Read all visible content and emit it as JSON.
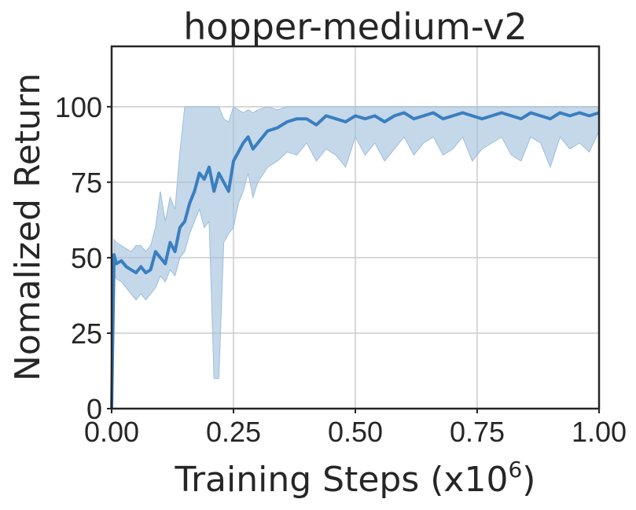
{
  "chart_data": {
    "type": "line",
    "title": "hopper-medium-v2",
    "xlabel": "Training Steps (x10",
    "xlabel_exponent": "6",
    "xlabel_close": ")",
    "ylabel": "Nomalized Return",
    "xlim": [
      0.0,
      1.0
    ],
    "ylim": [
      0,
      120
    ],
    "xticks": [
      "0.00",
      "0.25",
      "0.50",
      "0.75",
      "1.00"
    ],
    "xtick_values": [
      0.0,
      0.25,
      0.5,
      0.75,
      1.0
    ],
    "yticks": [
      "0",
      "25",
      "50",
      "75",
      "100"
    ],
    "ytick_values": [
      0,
      25,
      50,
      75,
      100
    ],
    "grid": true,
    "colors": {
      "line": "#3a7ebf",
      "band": "#9dbedc"
    },
    "series": [
      {
        "x": [
          0.0,
          0.005,
          0.01,
          0.02,
          0.03,
          0.04,
          0.05,
          0.06,
          0.07,
          0.08,
          0.09,
          0.1,
          0.11,
          0.12,
          0.13,
          0.14,
          0.15,
          0.16,
          0.17,
          0.18,
          0.19,
          0.2,
          0.21,
          0.22,
          0.23,
          0.24,
          0.25,
          0.26,
          0.27,
          0.28,
          0.29,
          0.3,
          0.32,
          0.34,
          0.36,
          0.38,
          0.4,
          0.42,
          0.44,
          0.46,
          0.48,
          0.5,
          0.52,
          0.54,
          0.56,
          0.58,
          0.6,
          0.62,
          0.64,
          0.66,
          0.68,
          0.7,
          0.72,
          0.74,
          0.76,
          0.78,
          0.8,
          0.82,
          0.84,
          0.86,
          0.88,
          0.9,
          0.92,
          0.94,
          0.96,
          0.98,
          1.0
        ],
        "y": [
          0,
          51,
          48,
          49,
          47,
          46,
          45,
          47,
          45,
          46,
          52,
          50,
          48,
          55,
          52,
          60,
          62,
          68,
          72,
          78,
          76,
          80,
          72,
          78,
          75,
          72,
          82,
          85,
          88,
          90,
          86,
          88,
          92,
          93,
          95,
          96,
          96,
          94,
          97,
          96,
          95,
          97,
          96,
          97,
          95,
          97,
          98,
          96,
          97,
          98,
          96,
          97,
          98,
          97,
          96,
          97,
          98,
          97,
          96,
          98,
          97,
          96,
          98,
          97,
          98,
          97,
          98
        ],
        "y_lower": [
          0,
          45,
          43,
          42,
          40,
          38,
          36,
          38,
          36,
          38,
          40,
          44,
          42,
          46,
          44,
          50,
          52,
          58,
          62,
          66,
          60,
          62,
          10,
          10,
          55,
          58,
          60,
          68,
          72,
          78,
          70,
          75,
          80,
          82,
          85,
          84,
          88,
          82,
          86,
          84,
          80,
          90,
          84,
          88,
          82,
          86,
          90,
          84,
          88,
          90,
          84,
          86,
          90,
          82,
          86,
          88,
          90,
          84,
          82,
          90,
          88,
          80,
          90,
          86,
          88,
          85,
          92
        ],
        "y_upper": [
          0,
          56,
          55,
          54,
          53,
          52,
          54,
          54,
          52,
          54,
          60,
          72,
          62,
          70,
          66,
          85,
          100,
          100,
          100,
          100,
          100,
          100,
          100,
          100,
          96,
          95,
          100,
          99,
          98,
          99,
          98,
          99,
          100,
          99,
          100,
          100,
          100,
          100,
          100,
          100,
          100,
          100,
          100,
          100,
          100,
          100,
          100,
          100,
          100,
          100,
          100,
          100,
          100,
          100,
          100,
          100,
          100,
          100,
          100,
          100,
          100,
          100,
          100,
          100,
          100,
          100,
          100
        ]
      }
    ]
  }
}
